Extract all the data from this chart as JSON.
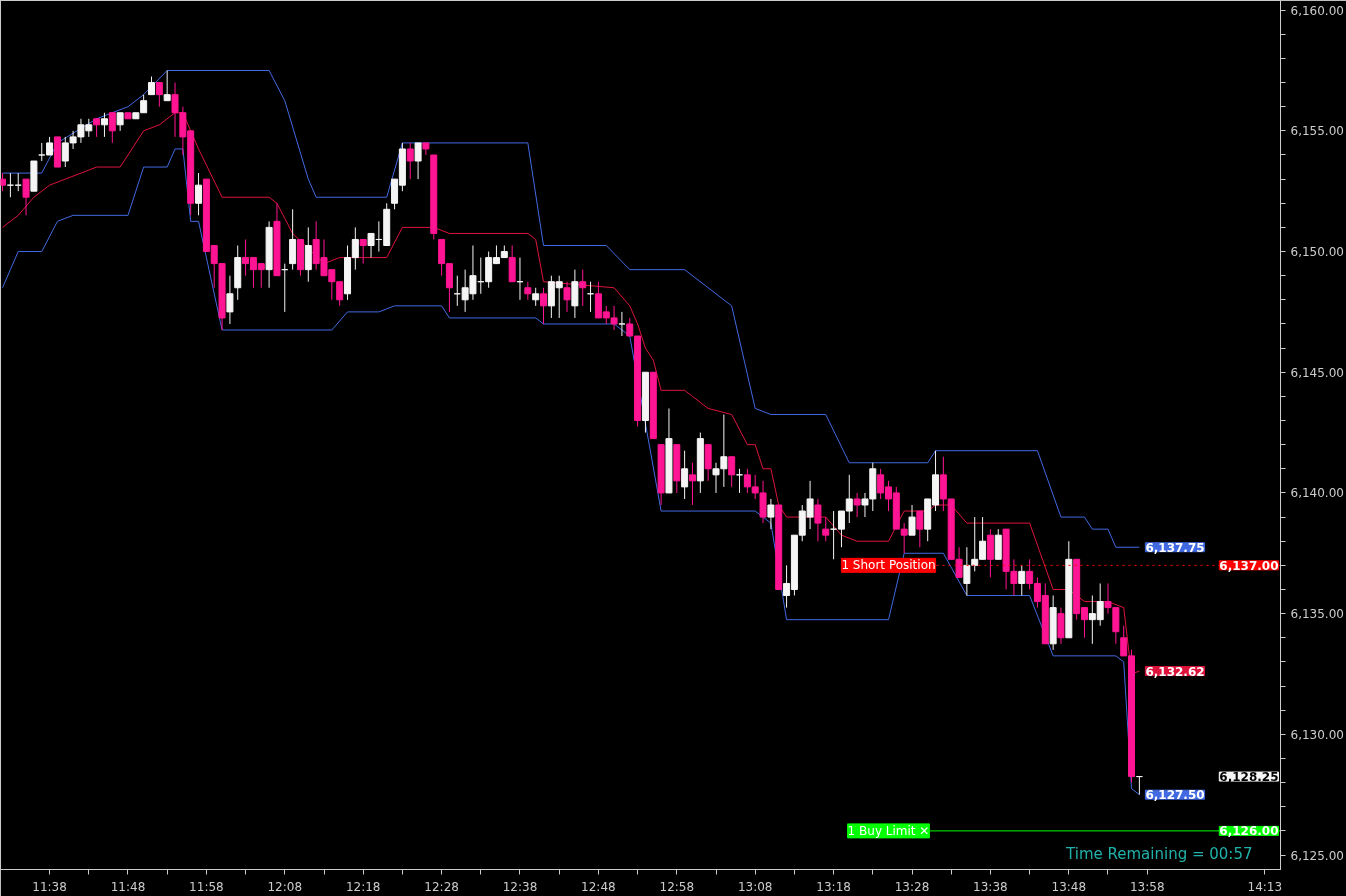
{
  "chart_data": {
    "type": "candlestick",
    "xlim": [
      11.529,
      14.25
    ],
    "ylim": [
      6124.4,
      6160.4
    ],
    "xticks": [
      {
        "value": 11.6333,
        "label": "11:38"
      },
      {
        "value": 11.7167,
        "label": null
      },
      {
        "value": 11.8,
        "label": "11:48"
      },
      {
        "value": 11.8833,
        "label": null
      },
      {
        "value": 11.9667,
        "label": "11:58"
      },
      {
        "value": 12.05,
        "label": null
      },
      {
        "value": 12.1333,
        "label": "12:08"
      },
      {
        "value": 12.2167,
        "label": null
      },
      {
        "value": 12.3,
        "label": "12:18"
      },
      {
        "value": 12.3833,
        "label": null
      },
      {
        "value": 12.4667,
        "label": "12:28"
      },
      {
        "value": 12.55,
        "label": null
      },
      {
        "value": 12.6333,
        "label": "12:38"
      },
      {
        "value": 12.7167,
        "label": null
      },
      {
        "value": 12.8,
        "label": "12:48"
      },
      {
        "value": 12.8833,
        "label": null
      },
      {
        "value": 12.9667,
        "label": "12:58"
      },
      {
        "value": 13.05,
        "label": null
      },
      {
        "value": 13.1333,
        "label": "13:08"
      },
      {
        "value": 13.2167,
        "label": null
      },
      {
        "value": 13.3,
        "label": "13:18"
      },
      {
        "value": 13.3833,
        "label": null
      },
      {
        "value": 13.4667,
        "label": "13:28"
      },
      {
        "value": 13.55,
        "label": null
      },
      {
        "value": 13.6333,
        "label": "13:38"
      },
      {
        "value": 13.7167,
        "label": null
      },
      {
        "value": 13.8,
        "label": "13:48"
      },
      {
        "value": 13.8833,
        "label": null
      },
      {
        "value": 13.9667,
        "label": "13:58"
      },
      {
        "value": 14.2167,
        "label": "14:13"
      }
    ],
    "yticks": [
      {
        "value": 6125,
        "label": "6,125.00"
      },
      {
        "value": 6126,
        "label": null
      },
      {
        "value": 6127,
        "label": null
      },
      {
        "value": 6128,
        "label": null
      },
      {
        "value": 6129,
        "label": null
      },
      {
        "value": 6130,
        "label": "6,130.00"
      },
      {
        "value": 6131,
        "label": null
      },
      {
        "value": 6132,
        "label": null
      },
      {
        "value": 6133,
        "label": null
      },
      {
        "value": 6134,
        "label": null
      },
      {
        "value": 6135,
        "label": "6,135.00"
      },
      {
        "value": 6136,
        "label": null
      },
      {
        "value": 6137,
        "label": null
      },
      {
        "value": 6138,
        "label": null
      },
      {
        "value": 6139,
        "label": null
      },
      {
        "value": 6140,
        "label": "6,140.00"
      },
      {
        "value": 6141,
        "label": null
      },
      {
        "value": 6142,
        "label": null
      },
      {
        "value": 6143,
        "label": null
      },
      {
        "value": 6144,
        "label": null
      },
      {
        "value": 6145,
        "label": "6,145.00"
      },
      {
        "value": 6146,
        "label": null
      },
      {
        "value": 6147,
        "label": null
      },
      {
        "value": 6148,
        "label": null
      },
      {
        "value": 6149,
        "label": null
      },
      {
        "value": 6150,
        "label": "6,150.00"
      },
      {
        "value": 6151,
        "label": null
      },
      {
        "value": 6152,
        "label": null
      },
      {
        "value": 6153,
        "label": null
      },
      {
        "value": 6154,
        "label": null
      },
      {
        "value": 6155,
        "label": "6,155.00"
      },
      {
        "value": 6156,
        "label": null
      },
      {
        "value": 6157,
        "label": null
      },
      {
        "value": 6158,
        "label": null
      },
      {
        "value": 6159,
        "label": null
      },
      {
        "value": 6160,
        "label": "6,160.00"
      }
    ],
    "grid": false,
    "series": [
      {
        "type": "line",
        "color": "#4169e1",
        "x": [
          11.5333,
          11.6167,
          11.65,
          11.7333,
          11.8,
          11.8333,
          11.8833,
          12.1,
          12.1333,
          12.1833,
          12.2,
          12.35,
          12.3833,
          12.65,
          12.6833,
          12.8167,
          12.8667,
          12.9833,
          13.0833,
          13.1333,
          13.1667,
          13.2833,
          13.3333,
          13.5,
          13.5167,
          13.7333,
          13.7833,
          13.8333,
          13.85,
          13.8833,
          13.9,
          13.95
        ],
        "values": [
          6153.25,
          6153.25,
          6154.5,
          6155.5,
          6156.0,
          6156.5,
          6157.5,
          6157.5,
          6156.25,
          6153.0,
          6152.25,
          6152.25,
          6154.5,
          6154.5,
          6150.25,
          6150.25,
          6149.25,
          6149.25,
          6147.75,
          6143.5,
          6143.25,
          6143.25,
          6141.25,
          6141.25,
          6141.75,
          6141.75,
          6139.0,
          6139.0,
          6138.5,
          6138.5,
          6137.75,
          6137.75
        ],
        "value_labels": [
          null,
          null,
          null,
          null,
          null,
          null,
          null,
          null,
          null,
          null,
          null,
          null,
          null,
          null,
          null,
          null,
          null,
          null,
          null,
          null,
          null,
          null,
          null,
          null,
          null,
          null,
          null,
          null,
          null,
          null,
          null,
          "6,137.75"
        ]
      },
      {
        "type": "line",
        "color": "#dc143c",
        "x": [
          11.5333,
          11.5667,
          11.6,
          11.6333,
          11.6667,
          11.7333,
          11.7833,
          11.8,
          11.8333,
          11.8667,
          11.9,
          11.9167,
          11.95,
          12.0,
          12.1,
          12.1167,
          12.15,
          12.2167,
          12.25,
          12.35,
          12.3833,
          12.45,
          12.4833,
          12.65,
          12.6667,
          12.6833,
          12.8333,
          12.8667,
          12.8833,
          12.9,
          12.9167,
          12.9333,
          12.9833,
          13.0,
          13.0333,
          13.0833,
          13.1167,
          13.1333,
          13.15,
          13.1667,
          13.1833,
          13.2,
          13.2833,
          13.3167,
          13.35,
          13.4167,
          13.45,
          13.5,
          13.5167,
          13.55,
          13.5833,
          13.7167,
          13.7667,
          13.8,
          13.8333,
          13.8833,
          13.9167,
          13.9333,
          13.95
        ],
        "values": [
          6151.0,
          6151.5,
          6152.25,
          6152.75,
          6153.0,
          6153.5,
          6153.5,
          6154.0,
          6155.0,
          6155.25,
          6155.75,
          6155.75,
          6154.25,
          6152.25,
          6152.25,
          6152.0,
          6150.75,
          6149.5,
          6149.75,
          6149.75,
          6151.0,
          6151.0,
          6150.75,
          6150.75,
          6150.5,
          6148.75,
          6148.5,
          6147.75,
          6147.0,
          6146.0,
          6145.5,
          6144.25,
          6144.25,
          6144.0,
          6143.5,
          6143.25,
          6142.0,
          6142.0,
          6141.0,
          6141.0,
          6139.5,
          6139.0,
          6139.0,
          6138.25,
          6138.0,
          6138.0,
          6139.25,
          6139.25,
          6139.5,
          6139.5,
          6138.75,
          6138.75,
          6136.0,
          6136.0,
          6135.5,
          6135.5,
          6135.25,
          6132.5,
          6132.62
        ],
        "value_labels": [
          null,
          null,
          null,
          null,
          null,
          null,
          null,
          null,
          null,
          null,
          null,
          null,
          null,
          null,
          null,
          null,
          null,
          null,
          null,
          null,
          null,
          null,
          null,
          null,
          null,
          null,
          null,
          null,
          null,
          null,
          null,
          null,
          null,
          null,
          null,
          null,
          null,
          null,
          null,
          null,
          null,
          null,
          null,
          null,
          null,
          null,
          null,
          null,
          null,
          null,
          null,
          null,
          null,
          null,
          null,
          null,
          null,
          null,
          "6,132.62"
        ]
      },
      {
        "type": "line",
        "color": "#4169e1",
        "x": [
          11.5333,
          11.55,
          11.5667,
          11.6167,
          11.65,
          11.6833,
          11.8,
          11.8333,
          11.8833,
          11.9,
          11.9167,
          11.9333,
          11.95,
          12.0,
          12.2333,
          12.2667,
          12.3333,
          12.3667,
          12.4667,
          12.4833,
          12.6667,
          12.6833,
          12.8333,
          12.8667,
          12.9333,
          13.1333,
          13.1667,
          13.2,
          13.4167,
          13.45,
          13.5333,
          13.5833,
          13.7167,
          13.7667,
          13.9,
          13.9167,
          13.9333,
          13.95
        ],
        "values": [
          6148.5,
          6149.25,
          6150.0,
          6150.0,
          6151.25,
          6151.5,
          6151.5,
          6153.5,
          6153.5,
          6154.25,
          6154.25,
          6151.25,
          6151.25,
          6146.75,
          6146.75,
          6147.5,
          6147.5,
          6147.75,
          6147.75,
          6147.25,
          6147.25,
          6147.0,
          6147.0,
          6146.5,
          6139.25,
          6139.25,
          6138.75,
          6134.75,
          6134.75,
          6137.5,
          6137.5,
          6135.75,
          6135.75,
          6133.25,
          6133.25,
          6133.0,
          6127.75,
          6127.5
        ],
        "value_labels": [
          null,
          null,
          null,
          null,
          null,
          null,
          null,
          null,
          null,
          null,
          null,
          null,
          null,
          null,
          null,
          null,
          null,
          null,
          null,
          null,
          null,
          null,
          null,
          null,
          null,
          null,
          null,
          null,
          null,
          null,
          null,
          null,
          null,
          null,
          null,
          null,
          null,
          "6,127.50"
        ]
      },
      {
        "color": "#f5f5f5",
        "x": [
          11.55,
          11.5667,
          11.6,
          11.6167,
          11.6333,
          11.6667,
          11.6833,
          11.7,
          11.7167,
          11.75,
          11.7833,
          11.8167,
          11.8333,
          11.85,
          11.8833,
          11.95,
          12.0167,
          12.0333,
          12.1,
          12.1333,
          12.15,
          12.1833,
          12.2667,
          12.2833,
          12.3167,
          12.3333,
          12.35,
          12.3667,
          12.3833,
          12.4167,
          12.5,
          12.5167,
          12.5333,
          12.55,
          12.5667,
          12.5833,
          12.6,
          12.6333,
          12.6667,
          12.7,
          12.7167,
          12.75,
          12.7833,
          12.85,
          12.9,
          12.95,
          12.9833,
          13.0167,
          13.05,
          13.0667,
          13.1,
          13.1667,
          13.2,
          13.2167,
          13.2333,
          13.25,
          13.3,
          13.3167,
          13.3333,
          13.3667,
          13.3833,
          13.4667,
          13.5,
          13.5167,
          13.5833,
          13.6,
          13.6167,
          13.65,
          13.7,
          13.7667,
          13.8,
          13.85,
          13.8667,
          13.95
        ],
        "ohlc": [
          [
            6152.75,
            6153.25,
            6152.25,
            6152.75
          ],
          [
            6152.75,
            6153.25,
            6152.5,
            6152.75
          ],
          [
            6152.5,
            6153.75,
            6152.5,
            6153.75
          ],
          [
            6154.0,
            6154.5,
            6153.75,
            6154.0
          ],
          [
            6154.0,
            6154.75,
            6154.0,
            6154.5
          ],
          [
            6153.75,
            6154.75,
            6153.5,
            6154.5
          ],
          [
            6154.5,
            6155.0,
            6154.25,
            6154.75
          ],
          [
            6154.75,
            6155.5,
            6154.5,
            6155.25
          ],
          [
            6155.0,
            6155.5,
            6154.75,
            6155.25
          ],
          [
            6155.25,
            6155.75,
            6154.75,
            6155.5
          ],
          [
            6155.25,
            6155.75,
            6155.0,
            6155.75
          ],
          [
            6155.5,
            6155.75,
            6155.5,
            6155.75
          ],
          [
            6155.75,
            6156.5,
            6155.75,
            6156.25
          ],
          [
            6156.5,
            6157.25,
            6156.5,
            6157.0
          ],
          [
            6156.25,
            6157.5,
            6156.25,
            6156.5
          ],
          [
            6152.0,
            6153.25,
            6151.5,
            6152.75
          ],
          [
            6147.5,
            6149.0,
            6147.0,
            6148.25
          ],
          [
            6148.5,
            6150.25,
            6148.0,
            6149.75
          ],
          [
            6149.25,
            6151.25,
            6148.5,
            6151.0
          ],
          [
            6149.25,
            6149.5,
            6147.5,
            6149.25
          ],
          [
            6149.5,
            6151.75,
            6149.25,
            6150.5
          ],
          [
            6149.25,
            6151.0,
            6148.75,
            6150.25
          ],
          [
            6148.25,
            6150.25,
            6148.0,
            6149.75
          ],
          [
            6149.75,
            6151.0,
            6149.25,
            6150.5
          ],
          [
            6150.25,
            6150.75,
            6149.75,
            6150.75
          ],
          [
            6150.5,
            6151.25,
            6150.0,
            6150.5
          ],
          [
            6150.25,
            6152.0,
            6150.25,
            6151.75
          ],
          [
            6152.0,
            6153.0,
            6151.75,
            6153.0
          ],
          [
            6152.75,
            6154.5,
            6152.5,
            6154.25
          ],
          [
            6153.75,
            6154.5,
            6153.0,
            6154.5
          ],
          [
            6148.25,
            6149.0,
            6147.75,
            6148.25
          ],
          [
            6148.0,
            6149.25,
            6147.5,
            6148.5
          ],
          [
            6148.25,
            6150.25,
            6148.0,
            6149.0
          ],
          [
            6148.75,
            6149.75,
            6148.25,
            6148.75
          ],
          [
            6148.75,
            6150.0,
            6148.5,
            6149.75
          ],
          [
            6149.5,
            6150.25,
            6149.5,
            6149.75
          ],
          [
            6149.75,
            6150.25,
            6149.75,
            6150.0
          ],
          [
            6148.75,
            6149.75,
            6148.0,
            6148.75
          ],
          [
            6148.0,
            6148.5,
            6147.75,
            6148.25
          ],
          [
            6147.75,
            6149.0,
            6147.25,
            6148.75
          ],
          [
            6148.5,
            6149.0,
            6147.25,
            6148.75
          ],
          [
            6147.75,
            6149.25,
            6147.25,
            6148.75
          ],
          [
            6148.25,
            6148.75,
            6147.5,
            6148.25
          ],
          [
            6147.0,
            6147.5,
            6146.5,
            6147.0
          ],
          [
            6143.0,
            6145.0,
            6142.5,
            6145.0
          ],
          [
            6140.0,
            6143.5,
            6140.0,
            6142.25
          ],
          [
            6140.25,
            6141.75,
            6139.75,
            6141.0
          ],
          [
            6140.5,
            6142.5,
            6140.0,
            6142.25
          ],
          [
            6140.75,
            6141.25,
            6140.0,
            6141.0
          ],
          [
            6141.0,
            6143.25,
            6140.25,
            6141.5
          ],
          [
            6140.75,
            6141.0,
            6140.0,
            6140.75
          ],
          [
            6139.0,
            6139.75,
            6138.5,
            6139.5
          ],
          [
            6135.75,
            6137.0,
            6135.25,
            6136.25
          ],
          [
            6136.0,
            6138.25,
            6135.75,
            6138.25
          ],
          [
            6138.25,
            6139.5,
            6138.0,
            6139.25
          ],
          [
            6139.0,
            6140.5,
            6138.5,
            6139.75
          ],
          [
            6138.5,
            6139.25,
            6137.25,
            6138.5
          ],
          [
            6138.5,
            6139.25,
            6137.75,
            6139.25
          ],
          [
            6139.25,
            6140.75,
            6138.75,
            6139.75
          ],
          [
            6139.5,
            6140.0,
            6139.0,
            6139.75
          ],
          [
            6139.75,
            6141.25,
            6139.25,
            6141.0
          ],
          [
            6138.25,
            6139.5,
            6138.25,
            6139.0
          ],
          [
            6138.5,
            6139.75,
            6138.0,
            6139.75
          ],
          [
            6139.5,
            6141.75,
            6139.25,
            6140.75
          ],
          [
            6136.25,
            6137.75,
            6135.75,
            6137.0
          ],
          [
            6137.0,
            6139.0,
            6136.75,
            6137.25
          ],
          [
            6137.25,
            6139.0,
            6137.25,
            6138.0
          ],
          [
            6137.25,
            6138.5,
            6137.25,
            6138.25
          ],
          [
            6136.25,
            6137.0,
            6135.75,
            6136.75
          ],
          [
            6133.75,
            6135.75,
            6133.5,
            6135.25
          ],
          [
            6134.0,
            6138.0,
            6134.0,
            6137.25
          ],
          [
            6134.75,
            6135.75,
            6133.75,
            6135.0
          ],
          [
            6134.75,
            6136.25,
            6134.5,
            6135.5
          ],
          [
            6128.25,
            6128.25,
            6127.5,
            6128.25
          ]
        ],
        "value_labels": [
          null,
          null,
          null,
          null,
          null,
          null,
          null,
          null,
          null,
          null,
          null,
          null,
          null,
          null,
          null,
          null,
          null,
          null,
          null,
          null,
          null,
          null,
          null,
          null,
          null,
          null,
          null,
          null,
          null,
          null,
          null,
          null,
          null,
          null,
          null,
          null,
          null,
          null,
          null,
          null,
          null,
          null,
          null,
          null,
          null,
          null,
          null,
          null,
          null,
          null,
          null,
          null,
          null,
          null,
          null,
          null,
          null,
          null,
          null,
          null,
          null,
          null,
          null,
          null,
          null,
          null,
          null,
          null,
          null,
          null,
          null,
          null,
          null,
          "6,128.25"
        ]
      },
      {
        "color": "#ff1493",
        "x": [
          11.5333,
          11.5833,
          11.65,
          11.7333,
          11.7667,
          11.8,
          11.8667,
          11.9,
          11.9167,
          11.9333,
          11.9667,
          11.9833,
          12.0,
          12.05,
          12.0667,
          12.0833,
          12.1167,
          12.1667,
          12.2,
          12.2167,
          12.2333,
          12.25,
          12.3,
          12.4,
          12.4333,
          12.45,
          12.4667,
          12.4833,
          12.6167,
          12.65,
          12.6833,
          12.7333,
          12.7667,
          12.8,
          12.8167,
          12.8333,
          12.8667,
          12.8833,
          12.9167,
          12.9333,
          12.9667,
          13.0,
          13.0333,
          13.0833,
          13.1167,
          13.1333,
          13.15,
          13.1833,
          13.2667,
          13.2833,
          13.35,
          13.4,
          13.4167,
          13.4333,
          13.45,
          13.4833,
          13.5333,
          13.55,
          13.5667,
          13.6333,
          13.6667,
          13.6833,
          13.7167,
          13.7333,
          13.75,
          13.7833,
          13.8167,
          13.8333,
          13.8833,
          13.9,
          13.9167,
          13.9333
        ],
        "ohlc": [
          [
            6153.0,
            6153.25,
            6152.5,
            6152.75
          ],
          [
            6153.0,
            6153.0,
            6151.5,
            6152.25
          ],
          [
            6154.75,
            6154.75,
            6153.5,
            6153.5
          ],
          [
            6155.5,
            6155.5,
            6154.75,
            6155.25
          ],
          [
            6155.75,
            6155.75,
            6154.5,
            6155.0
          ],
          [
            6155.75,
            6155.75,
            6155.5,
            6155.5
          ],
          [
            6157.0,
            6157.0,
            6156.0,
            6156.5
          ],
          [
            6156.5,
            6157.0,
            6154.75,
            6155.75
          ],
          [
            6155.75,
            6156.0,
            6154.0,
            6154.75
          ],
          [
            6155.0,
            6155.0,
            6151.5,
            6152.0
          ],
          [
            6153.0,
            6153.0,
            6150.0,
            6150.0
          ],
          [
            6150.25,
            6150.25,
            6148.5,
            6149.5
          ],
          [
            6149.5,
            6149.5,
            6146.75,
            6147.25
          ],
          [
            6149.75,
            6150.5,
            6149.0,
            6149.5
          ],
          [
            6149.75,
            6149.75,
            6148.5,
            6149.25
          ],
          [
            6149.5,
            6149.5,
            6148.5,
            6149.25
          ],
          [
            6151.25,
            6152.0,
            6149.0,
            6149.0
          ],
          [
            6150.5,
            6150.5,
            6149.0,
            6149.25
          ],
          [
            6150.5,
            6151.25,
            6149.25,
            6149.5
          ],
          [
            6149.75,
            6150.5,
            6149.0,
            6149.0
          ],
          [
            6149.25,
            6149.25,
            6148.0,
            6148.75
          ],
          [
            6148.75,
            6148.75,
            6147.75,
            6148.0
          ],
          [
            6150.5,
            6150.5,
            6149.5,
            6150.25
          ],
          [
            6154.25,
            6154.5,
            6153.0,
            6153.75
          ],
          [
            6154.5,
            6154.5,
            6154.0,
            6154.25
          ],
          [
            6154.0,
            6154.0,
            6150.5,
            6150.75
          ],
          [
            6150.5,
            6150.5,
            6149.0,
            6149.5
          ],
          [
            6149.5,
            6149.5,
            6147.5,
            6148.5
          ],
          [
            6149.75,
            6150.25,
            6148.75,
            6148.75
          ],
          [
            6148.5,
            6148.75,
            6148.0,
            6148.25
          ],
          [
            6148.25,
            6148.5,
            6147.0,
            6147.75
          ],
          [
            6148.5,
            6148.75,
            6147.5,
            6148.0
          ],
          [
            6148.75,
            6149.25,
            6147.75,
            6148.5
          ],
          [
            6148.25,
            6148.75,
            6147.25,
            6147.25
          ],
          [
            6147.5,
            6147.75,
            6147.0,
            6147.25
          ],
          [
            6147.25,
            6147.75,
            6146.75,
            6147.0
          ],
          [
            6147.0,
            6147.25,
            6146.5,
            6146.5
          ],
          [
            6146.5,
            6146.5,
            6142.75,
            6143.0
          ],
          [
            6145.0,
            6145.0,
            6142.25,
            6142.25
          ],
          [
            6142.0,
            6142.0,
            6139.5,
            6140.0
          ],
          [
            6142.0,
            6142.0,
            6140.0,
            6140.5
          ],
          [
            6140.75,
            6141.25,
            6139.5,
            6140.5
          ],
          [
            6142.0,
            6142.0,
            6140.5,
            6141.0
          ],
          [
            6141.5,
            6141.5,
            6140.25,
            6140.75
          ],
          [
            6140.75,
            6141.0,
            6140.0,
            6140.25
          ],
          [
            6140.25,
            6140.75,
            6139.75,
            6140.0
          ],
          [
            6140.0,
            6140.5,
            6138.75,
            6139.0
          ],
          [
            6139.5,
            6139.5,
            6136.0,
            6136.0
          ],
          [
            6139.5,
            6139.75,
            6138.0,
            6138.75
          ],
          [
            6138.5,
            6139.0,
            6138.0,
            6138.25
          ],
          [
            6139.75,
            6140.0,
            6139.0,
            6139.5
          ],
          [
            6140.75,
            6141.0,
            6139.75,
            6140.0
          ],
          [
            6140.25,
            6140.5,
            6139.25,
            6139.75
          ],
          [
            6140.0,
            6140.25,
            6138.5,
            6138.5
          ],
          [
            6138.5,
            6138.75,
            6137.5,
            6138.25
          ],
          [
            6139.25,
            6139.25,
            6137.75,
            6138.5
          ],
          [
            6140.75,
            6141.5,
            6139.25,
            6139.75
          ],
          [
            6139.75,
            6139.75,
            6137.25,
            6137.25
          ],
          [
            6137.25,
            6137.75,
            6136.5,
            6136.5
          ],
          [
            6138.25,
            6138.5,
            6136.5,
            6137.25
          ],
          [
            6138.5,
            6138.5,
            6136.0,
            6136.75
          ],
          [
            6136.75,
            6137.25,
            6135.75,
            6136.25
          ],
          [
            6136.75,
            6137.25,
            6136.0,
            6136.25
          ],
          [
            6136.25,
            6136.5,
            6135.25,
            6135.5
          ],
          [
            6135.75,
            6136.25,
            6133.75,
            6133.75
          ],
          [
            6135.0,
            6135.25,
            6133.75,
            6134.0
          ],
          [
            6137.25,
            6137.25,
            6134.75,
            6135.0
          ],
          [
            6135.25,
            6135.25,
            6134.0,
            6134.75
          ],
          [
            6135.5,
            6136.25,
            6135.0,
            6135.25
          ],
          [
            6135.25,
            6135.25,
            6133.75,
            6134.25
          ],
          [
            6134.0,
            6134.5,
            6133.25,
            6133.25
          ],
          [
            6133.25,
            6133.5,
            6128.0,
            6128.25
          ]
        ]
      }
    ],
    "ref_lines": [
      {
        "axis": "y",
        "value": 6137,
        "label": "6,137.00",
        "color": "#ff0000",
        "line_style": "dotted"
      },
      {
        "axis": "y",
        "value": 6126,
        "label": "6,126.00",
        "color": "#00ff00",
        "line_style": "solid"
      }
    ],
    "annotations": [
      {
        "text": "1 Short Position",
        "x": 13.4167,
        "y": 6137
      },
      {
        "text": "1 Buy Limit ✕",
        "x": 13.4167,
        "y": 6126
      },
      "Time Remaining = 00:57"
    ]
  }
}
